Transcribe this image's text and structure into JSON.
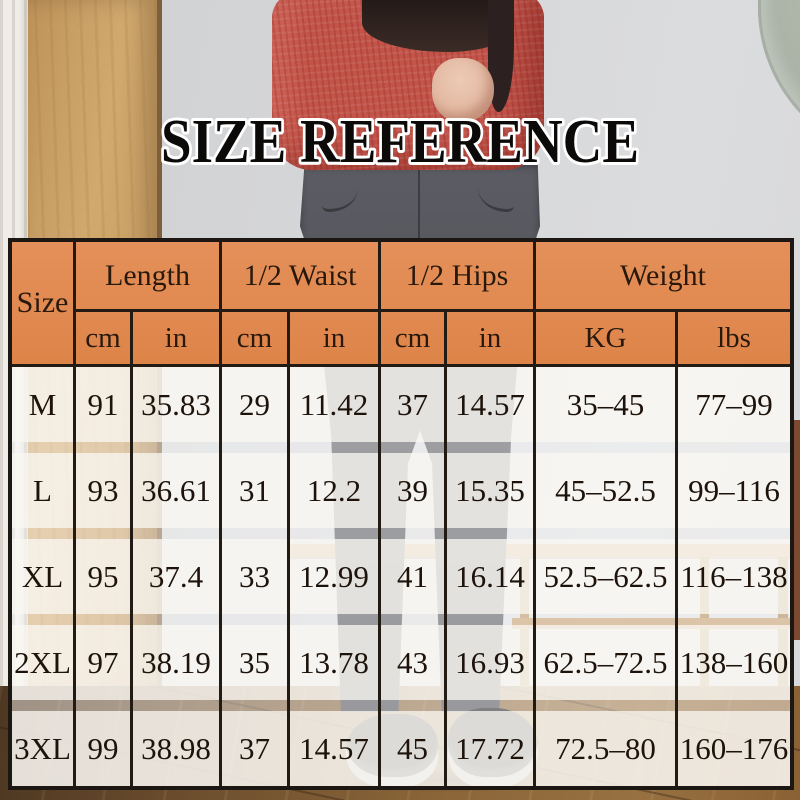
{
  "title": "SIZE REFERENCE",
  "table": {
    "corner": "Size",
    "groups": [
      {
        "label": "Length",
        "units": [
          "cm",
          "in"
        ]
      },
      {
        "label": "1/2 Waist",
        "units": [
          "cm",
          "in"
        ]
      },
      {
        "label": "1/2 Hips",
        "units": [
          "cm",
          "in"
        ]
      },
      {
        "label": "Weight",
        "units": [
          "KG",
          "lbs"
        ]
      }
    ],
    "rows": [
      {
        "size": "M",
        "values": [
          "91",
          "35.83",
          "29",
          "11.42",
          "37",
          "14.57",
          "35–45",
          "77–99"
        ]
      },
      {
        "size": "L",
        "values": [
          "93",
          "36.61",
          "31",
          "12.2",
          "39",
          "15.35",
          "45–52.5",
          "99–116"
        ]
      },
      {
        "size": "XL",
        "values": [
          "95",
          "37.4",
          "33",
          "12.99",
          "41",
          "16.14",
          "52.5–62.5",
          "116–138"
        ]
      },
      {
        "size": "2XL",
        "values": [
          "97",
          "38.19",
          "35",
          "13.78",
          "43",
          "16.93",
          "62.5–72.5",
          "138–160"
        ]
      },
      {
        "size": "3XL",
        "values": [
          "99",
          "38.98",
          "37",
          "14.57",
          "45",
          "17.72",
          "72.5–80",
          "160–176"
        ]
      }
    ]
  },
  "colors": {
    "header_bg": "#e08a51",
    "table_border": "#211b14",
    "cell_overlay": "rgba(250,248,244,0.87)",
    "title_fill": "#0b0a09",
    "title_outline": "#ffffff",
    "sweater_red": "#c3544a",
    "leggings_gray": "#515258"
  }
}
